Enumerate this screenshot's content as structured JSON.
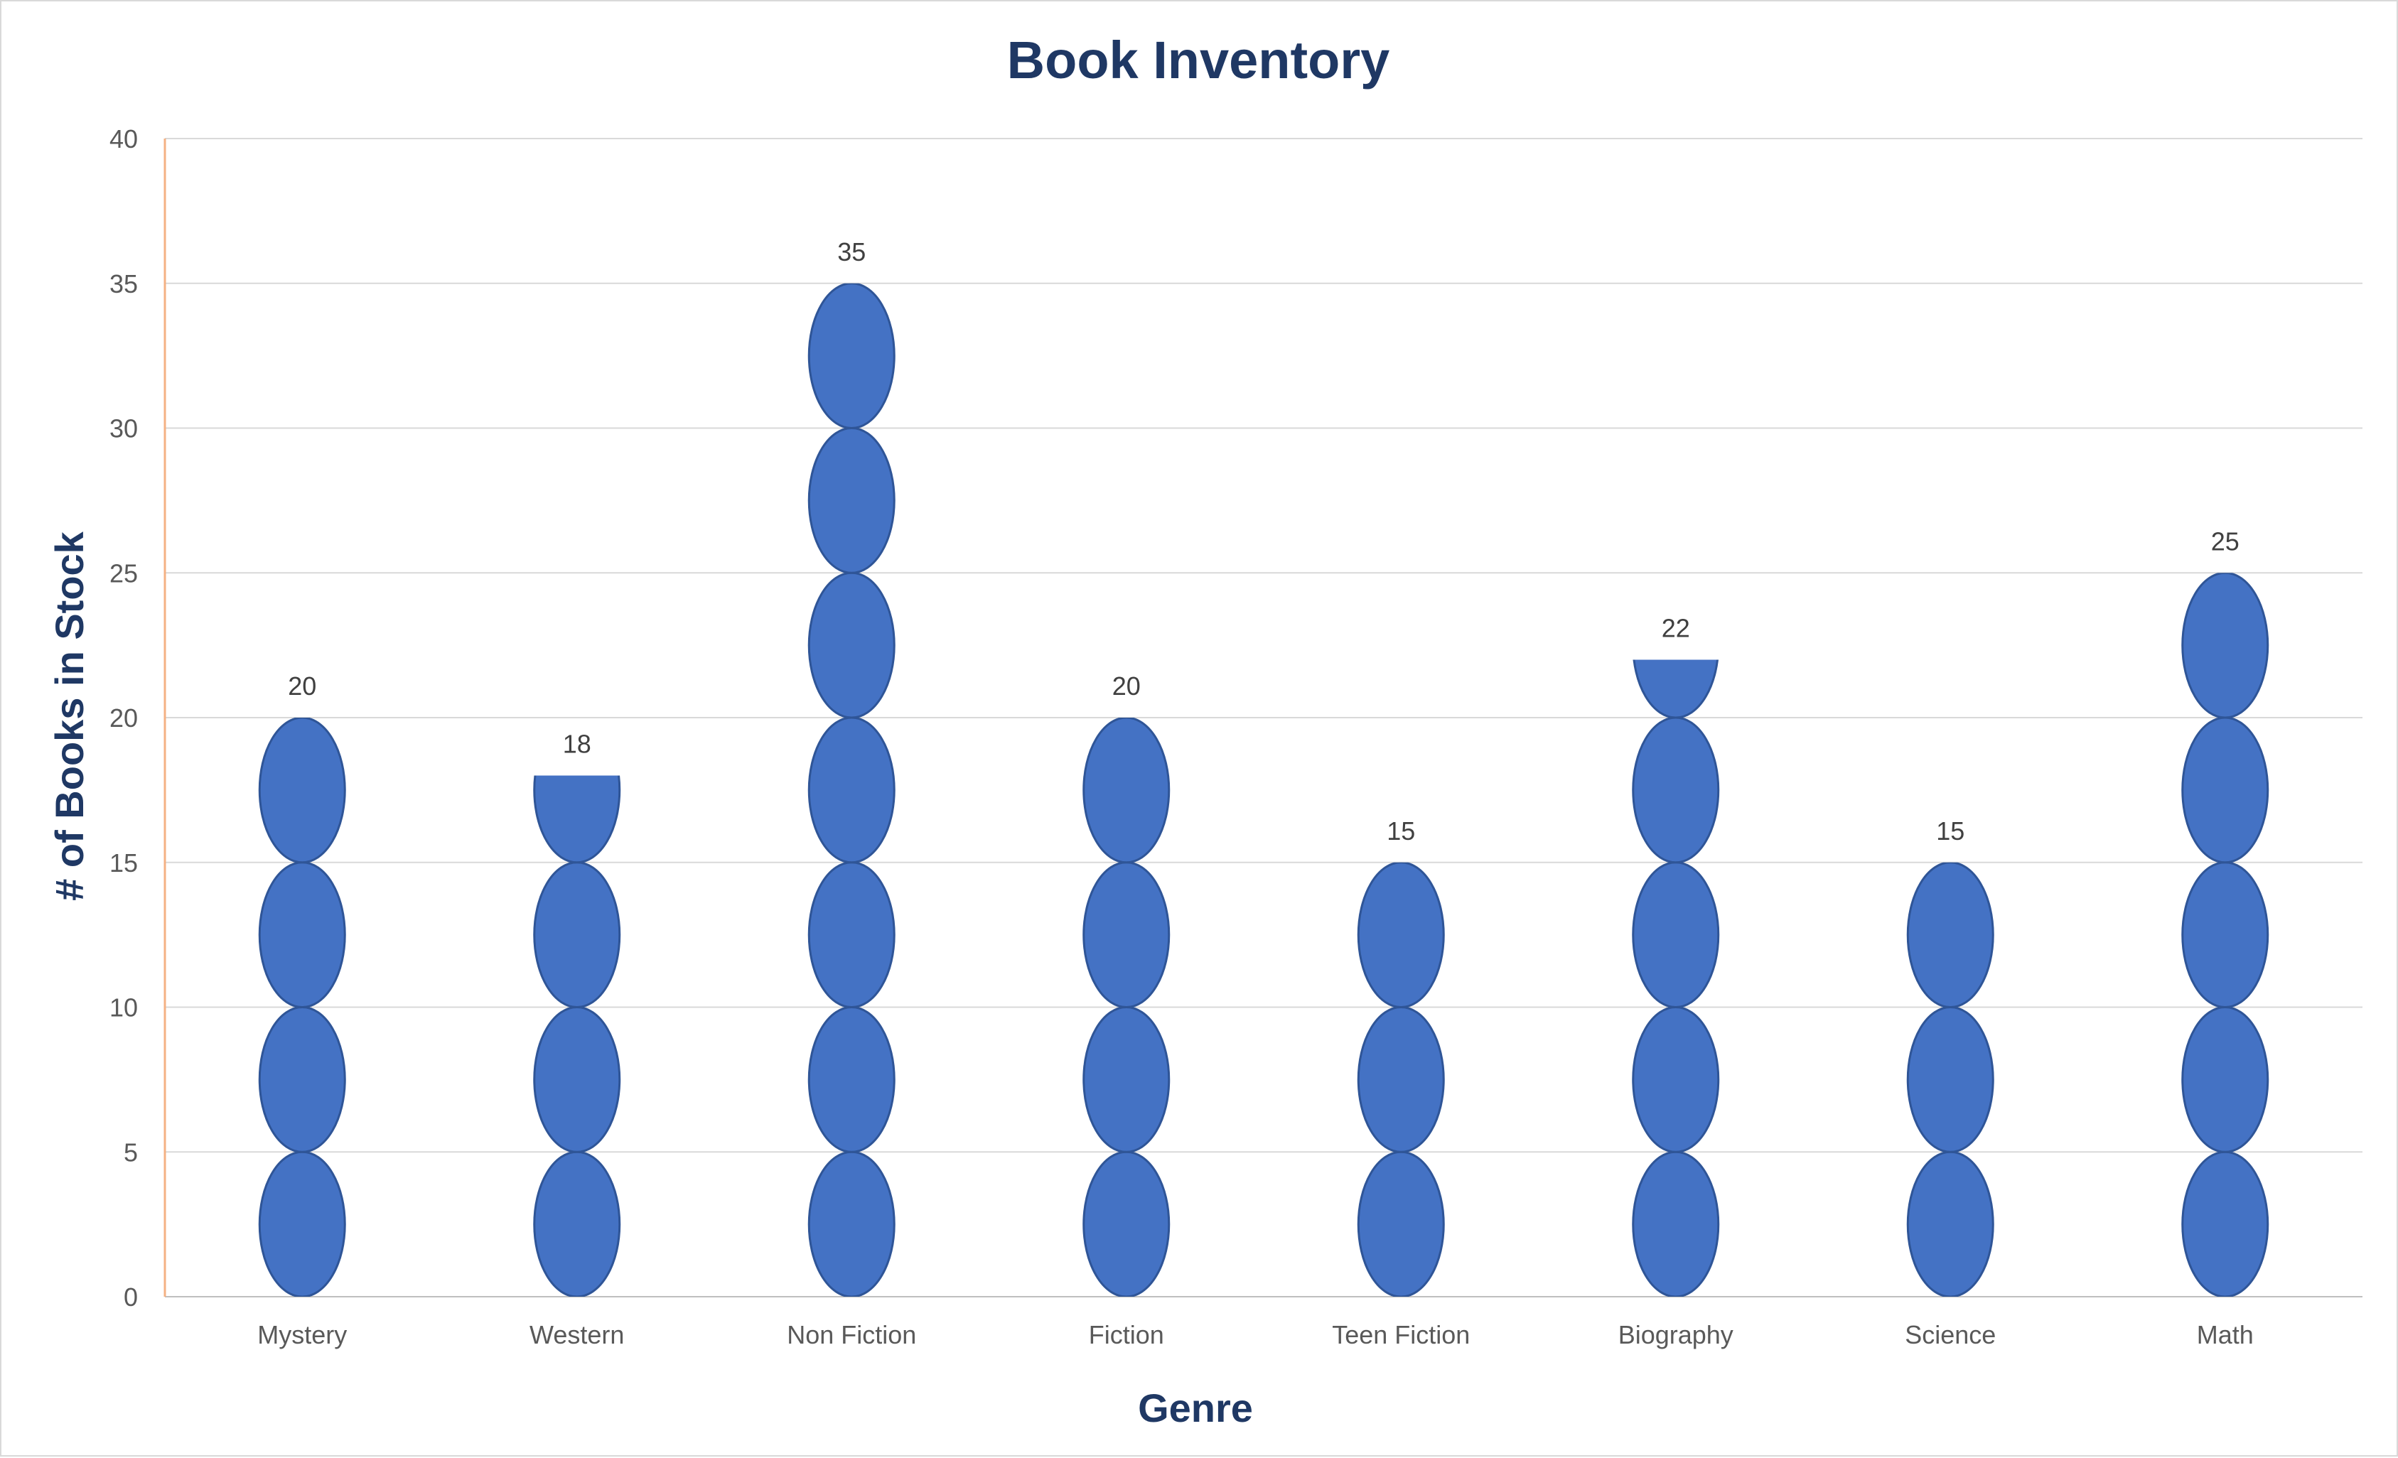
{
  "chart_data": {
    "type": "bar",
    "title": "Book Inventory",
    "xlabel": "Genre",
    "ylabel": "# of Books in Stock",
    "categories": [
      "Mystery",
      "Western",
      "Non Fiction",
      "Fiction",
      "Teen Fiction",
      "Biography",
      "Science",
      "Math"
    ],
    "values": [
      20,
      18,
      35,
      20,
      15,
      22,
      15,
      25
    ],
    "ylim": [
      0,
      40
    ],
    "yticks": [
      0,
      5,
      10,
      15,
      20,
      25,
      30,
      35,
      40
    ],
    "grid": true,
    "legend": "none",
    "data_labels": true,
    "pictograph_unit": 5,
    "pictograph_symbol": "ellipse-icon",
    "colors": {
      "bar": "#4472c4",
      "bar_edge": "#2f5597",
      "title": "#1f3864",
      "gridline": "#d9d9d9",
      "y_axis_line": "#f4b183"
    }
  }
}
